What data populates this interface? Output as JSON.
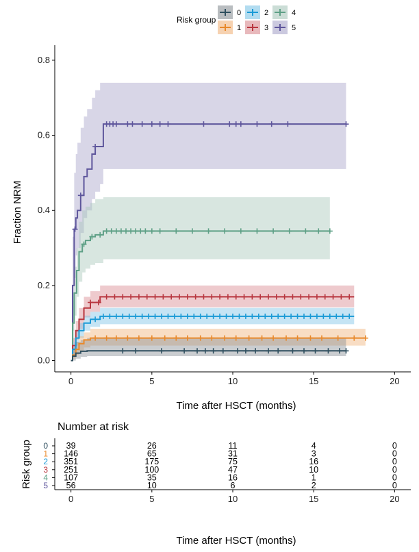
{
  "chart_data": {
    "type": "line",
    "xlabel": "Time after HSCT (months)",
    "ylabel": "Fraction NRM",
    "xlim": [
      -1,
      21
    ],
    "ylim": [
      -0.03,
      0.84
    ],
    "x_ticks": [
      "0",
      "5",
      "10",
      "15",
      "20"
    ],
    "y_ticks": [
      "0.0",
      "0.2",
      "0.4",
      "0.6",
      "0.8"
    ],
    "grid": false,
    "legend": {
      "title": "Risk group",
      "position": "top",
      "labels": [
        "0",
        "1",
        "2",
        "3",
        "4",
        "5"
      ]
    },
    "series": [
      {
        "name": "0",
        "color": "#2f4f5f",
        "band_color": "#8a9196",
        "x": [
          0,
          0.1,
          0.3,
          0.6,
          1,
          17
        ],
        "y": [
          0,
          0.012,
          0.02,
          0.025,
          0.026,
          0.026
        ],
        "lower": [
          0,
          0.0,
          0.005,
          0.01,
          0.012,
          0.012
        ],
        "upper": [
          0,
          0.035,
          0.05,
          0.055,
          0.06,
          0.06
        ],
        "band_end": 17,
        "censor_x": [
          3.2,
          4,
          5.6,
          7,
          7.8,
          8.3,
          8.8,
          9.4,
          10.3,
          10.8,
          11.4,
          12.2,
          12.8,
          13.7,
          14.4,
          15.1,
          15.9,
          16.6,
          17
        ]
      },
      {
        "name": "1",
        "color": "#e8892b",
        "band_color": "#f0b47d",
        "x": [
          0,
          0.1,
          0.3,
          0.5,
          0.8,
          1.2,
          18.2
        ],
        "y": [
          0,
          0.015,
          0.03,
          0.045,
          0.055,
          0.06,
          0.06
        ],
        "lower": [
          0,
          0.005,
          0.015,
          0.025,
          0.035,
          0.04,
          0.04
        ],
        "upper": [
          0,
          0.03,
          0.05,
          0.065,
          0.075,
          0.085,
          0.085
        ],
        "band_end": 18.2,
        "censor_x": [
          1.5,
          2.2,
          2.8,
          3.5,
          4.2,
          5,
          5.8,
          6.5,
          7.2,
          8,
          8.7,
          9.5,
          10.2,
          11,
          11.8,
          12.5,
          13.3,
          14,
          14.8,
          15.5,
          16.5,
          17.5,
          18.2
        ]
      },
      {
        "name": "2",
        "color": "#1a9ad6",
        "band_color": "#7fc4e6",
        "x": [
          0,
          0.1,
          0.3,
          0.5,
          0.8,
          1.2,
          1.8,
          17.5
        ],
        "y": [
          0,
          0.03,
          0.06,
          0.08,
          0.1,
          0.11,
          0.118,
          0.118
        ],
        "lower": [
          0,
          0.015,
          0.04,
          0.06,
          0.08,
          0.09,
          0.097,
          0.097
        ],
        "upper": [
          0,
          0.05,
          0.08,
          0.1,
          0.12,
          0.13,
          0.14,
          0.14
        ],
        "band_end": 17.5,
        "censor_x": [
          1.5,
          2,
          2.4,
          2.8,
          3.2,
          3.6,
          4,
          4.4,
          4.8,
          5.2,
          5.6,
          6,
          6.4,
          6.8,
          7.2,
          7.6,
          8,
          8.4,
          8.8,
          9.2,
          9.6,
          10,
          10.4,
          10.8,
          11.2,
          11.6,
          12,
          12.4,
          12.8,
          13.2,
          13.6,
          14,
          14.4,
          14.8,
          15.2,
          15.6,
          16,
          16.4,
          16.8,
          17.2
        ]
      },
      {
        "name": "3",
        "color": "#b8363f",
        "band_color": "#d98a90",
        "x": [
          0,
          0.1,
          0.3,
          0.5,
          0.8,
          1.2,
          1.8,
          17.5
        ],
        "y": [
          0,
          0.04,
          0.08,
          0.11,
          0.14,
          0.155,
          0.17,
          0.17
        ],
        "lower": [
          0,
          0.02,
          0.055,
          0.085,
          0.115,
          0.13,
          0.142,
          0.142
        ],
        "upper": [
          0,
          0.06,
          0.105,
          0.14,
          0.17,
          0.185,
          0.2,
          0.2
        ],
        "band_end": 17.5,
        "censor_x": [
          1.2,
          1.7,
          2.2,
          2.7,
          3.2,
          3.7,
          4.2,
          4.7,
          5.2,
          5.7,
          6.2,
          6.7,
          7.2,
          7.7,
          8.2,
          8.7,
          9.2,
          9.7,
          10.2,
          10.7,
          11.2,
          11.7,
          12.2,
          12.7,
          13.2,
          13.7,
          14.2,
          14.7,
          15.2,
          15.7,
          16.2,
          16.7,
          17.2
        ]
      },
      {
        "name": "4",
        "color": "#5ea086",
        "band_color": "#a9c7ba",
        "x": [
          0,
          0.1,
          0.2,
          0.35,
          0.5,
          0.7,
          0.9,
          1.2,
          1.5,
          2,
          16
        ],
        "y": [
          0,
          0.1,
          0.18,
          0.24,
          0.29,
          0.31,
          0.32,
          0.33,
          0.335,
          0.345,
          0.345
        ],
        "lower": [
          0,
          0.05,
          0.12,
          0.17,
          0.21,
          0.235,
          0.245,
          0.255,
          0.26,
          0.27,
          0.27
        ],
        "upper": [
          0,
          0.16,
          0.25,
          0.3,
          0.37,
          0.4,
          0.41,
          0.42,
          0.43,
          0.435,
          0.435
        ],
        "band_end": 16,
        "censor_x": [
          0.8,
          1.3,
          1.8,
          2.2,
          2.5,
          2.8,
          3.1,
          3.4,
          3.7,
          4,
          4.3,
          4.6,
          5,
          5.5,
          6.5,
          7.5,
          8.5,
          9.5,
          10.5,
          11.5,
          12.5,
          13.5,
          14.5,
          15.3,
          16
        ]
      },
      {
        "name": "5",
        "color": "#5e569c",
        "band_color": "#a9a5c9",
        "x": [
          0,
          0.1,
          0.2,
          0.3,
          0.4,
          0.6,
          0.8,
          1,
          1.3,
          1.5,
          1.8,
          2,
          17
        ],
        "y": [
          0,
          0.2,
          0.35,
          0.38,
          0.4,
          0.44,
          0.49,
          0.51,
          0.55,
          0.57,
          0.57,
          0.63,
          0.63
        ],
        "lower": [
          0,
          0.08,
          0.22,
          0.28,
          0.3,
          0.34,
          0.38,
          0.4,
          0.43,
          0.45,
          0.47,
          0.51,
          0.51
        ],
        "upper": [
          0,
          0.33,
          0.5,
          0.55,
          0.58,
          0.62,
          0.65,
          0.67,
          0.7,
          0.72,
          0.74,
          0.74,
          0.74
        ],
        "band_end": 17,
        "censor_x": [
          0.25,
          0.6,
          1.5,
          2.2,
          2.4,
          2.6,
          2.8,
          3.5,
          3.8,
          4.4,
          5,
          5.5,
          6,
          8.2,
          9.8,
          10.2,
          10.5,
          11.5,
          12.4,
          13.4,
          17
        ]
      }
    ]
  },
  "risk_table": {
    "title": "Number at risk",
    "ylabel": "Risk group",
    "xlabel": "Time after HSCT (months)",
    "time_points": [
      "0",
      "5",
      "10",
      "15",
      "20"
    ],
    "rows": [
      {
        "group": "0",
        "color": "#2f4f5f",
        "counts": [
          "39",
          "26",
          "11",
          "4",
          "0"
        ]
      },
      {
        "group": "1",
        "color": "#e8892b",
        "counts": [
          "146",
          "65",
          "31",
          "3",
          "0"
        ]
      },
      {
        "group": "2",
        "color": "#1a9ad6",
        "counts": [
          "351",
          "175",
          "75",
          "16",
          "0"
        ]
      },
      {
        "group": "3",
        "color": "#b8363f",
        "counts": [
          "251",
          "100",
          "47",
          "10",
          "0"
        ]
      },
      {
        "group": "4",
        "color": "#5ea086",
        "counts": [
          "107",
          "35",
          "16",
          "1",
          "0"
        ]
      },
      {
        "group": "5",
        "color": "#5e569c",
        "counts": [
          "56",
          "10",
          "6",
          "2",
          "0"
        ]
      }
    ]
  }
}
